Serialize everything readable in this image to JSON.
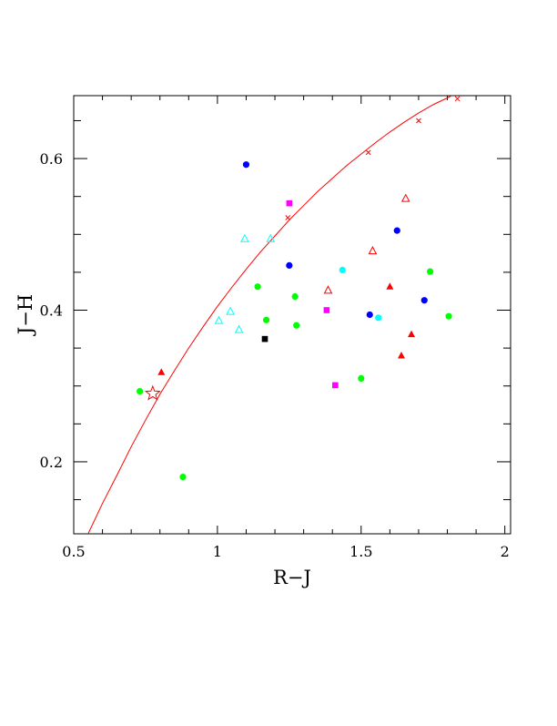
{
  "chart_data": {
    "type": "scatter",
    "title": "",
    "xlabel": "R−J",
    "ylabel": "J−H",
    "xlim": [
      0.5,
      2.02
    ],
    "ylim": [
      0.105,
      0.683
    ],
    "x_major_ticks": [
      0.5,
      1,
      1.5,
      2
    ],
    "x_tick_labels": [
      "0.5",
      "1",
      "1.5",
      "2"
    ],
    "x_minor_step": 0.1,
    "y_major_ticks": [
      0.2,
      0.4,
      0.6
    ],
    "y_tick_labels": [
      "0.2",
      "0.4",
      "0.6"
    ],
    "y_minor_step": 0.05,
    "grid": false,
    "legend": "none",
    "series": [
      {
        "marker": "filled-circle",
        "color": "#0000ff",
        "points": [
          [
            1.1,
            0.592
          ],
          [
            1.25,
            0.459
          ],
          [
            1.625,
            0.505
          ],
          [
            1.53,
            0.394
          ],
          [
            1.72,
            0.413
          ]
        ]
      },
      {
        "marker": "filled-circle",
        "color": "#00ff00",
        "points": [
          [
            0.73,
            0.293
          ],
          [
            0.88,
            0.18
          ],
          [
            1.14,
            0.431
          ],
          [
            1.17,
            0.387
          ],
          [
            1.27,
            0.418
          ],
          [
            1.275,
            0.38
          ],
          [
            1.5,
            0.31
          ],
          [
            1.74,
            0.451
          ],
          [
            1.805,
            0.392
          ]
        ]
      },
      {
        "marker": "filled-circle",
        "color": "#00ffff",
        "points": [
          [
            1.435,
            0.453
          ],
          [
            1.56,
            0.39
          ]
        ]
      },
      {
        "marker": "filled-square",
        "color": "#ff00ff",
        "points": [
          [
            1.25,
            0.541
          ],
          [
            1.38,
            0.4
          ],
          [
            1.41,
            0.301
          ]
        ]
      },
      {
        "marker": "filled-square",
        "color": "#000000",
        "points": [
          [
            1.165,
            0.362
          ]
        ]
      },
      {
        "marker": "filled-triangle",
        "color": "#ff0000",
        "points": [
          [
            0.805,
            0.318
          ],
          [
            1.6,
            0.431
          ],
          [
            1.675,
            0.368
          ],
          [
            1.64,
            0.34
          ]
        ]
      },
      {
        "marker": "open-triangle",
        "color": "#ff0000",
        "points": [
          [
            1.385,
            0.426
          ],
          [
            1.54,
            0.478
          ],
          [
            1.655,
            0.547
          ]
        ]
      },
      {
        "marker": "open-triangle",
        "color": "#00ffff",
        "points": [
          [
            1.095,
            0.494
          ],
          [
            1.185,
            0.494
          ],
          [
            1.045,
            0.398
          ],
          [
            1.005,
            0.386
          ],
          [
            1.075,
            0.374
          ]
        ]
      },
      {
        "marker": "open-star",
        "color": "#ff0000",
        "points": [
          [
            0.775,
            0.29
          ]
        ]
      }
    ],
    "curve": {
      "color": "#ff0000",
      "points": [
        [
          0.55,
          0.105
        ],
        [
          0.6,
          0.145
        ],
        [
          0.65,
          0.182
        ],
        [
          0.7,
          0.22
        ],
        [
          0.75,
          0.255
        ],
        [
          0.8,
          0.289
        ],
        [
          0.85,
          0.32
        ],
        [
          0.9,
          0.35
        ],
        [
          0.95,
          0.378
        ],
        [
          1.0,
          0.405
        ],
        [
          1.05,
          0.43
        ],
        [
          1.1,
          0.454
        ],
        [
          1.15,
          0.477
        ],
        [
          1.2,
          0.498
        ],
        [
          1.25,
          0.519
        ],
        [
          1.3,
          0.538
        ],
        [
          1.35,
          0.557
        ],
        [
          1.4,
          0.574
        ],
        [
          1.45,
          0.591
        ],
        [
          1.5,
          0.606
        ],
        [
          1.55,
          0.621
        ],
        [
          1.6,
          0.635
        ],
        [
          1.65,
          0.648
        ],
        [
          1.7,
          0.66
        ],
        [
          1.75,
          0.671
        ],
        [
          1.8,
          0.68
        ],
        [
          1.83,
          0.686
        ]
      ],
      "cross_markers": [
        [
          1.245,
          0.522
        ],
        [
          1.525,
          0.608
        ],
        [
          1.7,
          0.65
        ],
        [
          1.835,
          0.679
        ]
      ]
    }
  }
}
